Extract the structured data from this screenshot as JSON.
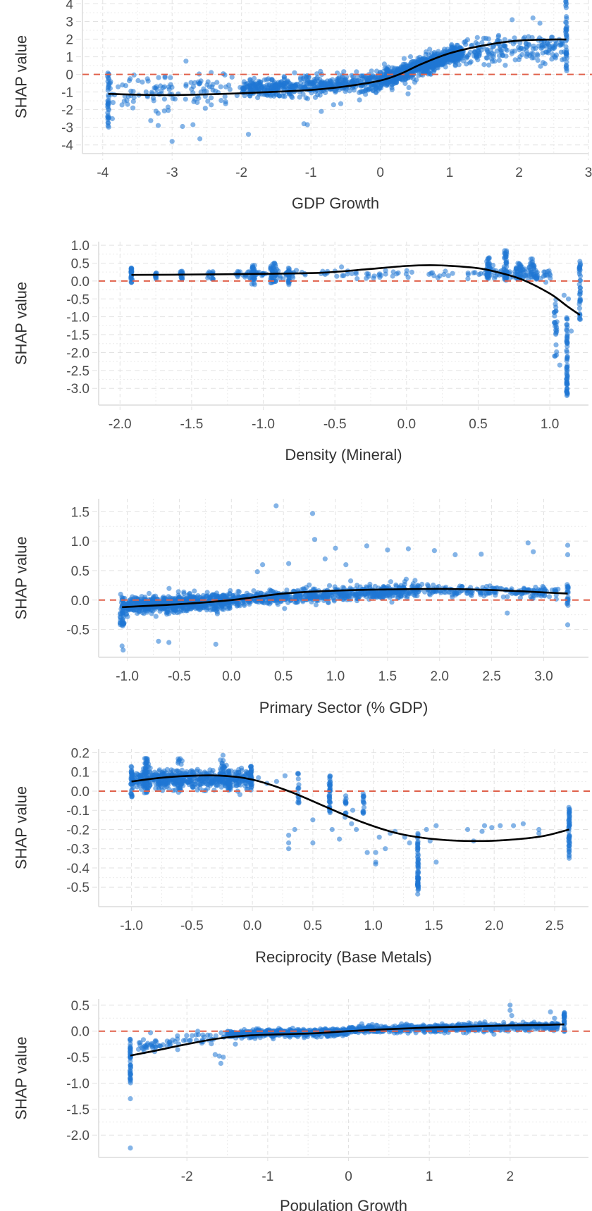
{
  "chart_data": [
    {
      "type": "scatter",
      "title": "",
      "xlabel": "GDP Growth",
      "ylabel": "SHAP value",
      "xlim": [
        -4.15,
        3.0
      ],
      "ylim": [
        -4.25,
        4.3
      ],
      "xticks": [
        -4,
        -3,
        -2,
        -1,
        0,
        1,
        2,
        3
      ],
      "xtick_labels": [
        "-4",
        "-3",
        "-2",
        "-1",
        "0",
        "1",
        "2",
        "3"
      ],
      "yticks": [
        4,
        3,
        2,
        1,
        0,
        -1,
        -2,
        -3,
        -4
      ],
      "ytick_labels": [
        "4",
        "3",
        "2",
        "1",
        "0",
        "-1",
        "-2",
        "-3",
        "-4"
      ],
      "grid": true,
      "reference_line": {
        "y": 0,
        "style": "dashed",
        "color": "#e0604a"
      },
      "point_color": "#1f77d4",
      "smooth_color": "#000000",
      "smooth": {
        "x": [
          -3.92,
          -3.5,
          -3.0,
          -2.5,
          -2.0,
          -1.5,
          -1.0,
          -0.5,
          0.0,
          0.3,
          0.6,
          1.0,
          1.5,
          2.0,
          2.5,
          2.68
        ],
        "y": [
          -1.1,
          -1.15,
          -1.17,
          -1.13,
          -1.07,
          -0.98,
          -0.88,
          -0.68,
          -0.35,
          0.05,
          0.6,
          1.2,
          1.65,
          1.92,
          1.98,
          1.98
        ]
      },
      "clusters": [
        {
          "x": -3.92,
          "y_min": -3.3,
          "y_max": 0.1,
          "n": 35,
          "jitter_x": 0.01
        },
        {
          "x": 2.68,
          "y_min": 0.0,
          "y_max": 4.3,
          "n": 40,
          "jitter_x": 0.01
        }
      ],
      "bands": [
        {
          "x_from": -3.9,
          "x_to": -2.0,
          "center_from": -1.0,
          "center_to": -0.8,
          "spread": 1.1,
          "n": 120
        },
        {
          "x_from": -2.0,
          "x_to": 0.0,
          "center_from": -0.8,
          "center_to": -0.45,
          "spread": 0.55,
          "n": 500
        },
        {
          "x_from": 0.0,
          "x_to": 1.2,
          "center_from": -0.35,
          "center_to": 1.3,
          "spread": 0.5,
          "n": 700
        },
        {
          "x_from": 1.2,
          "x_to": 2.65,
          "center_from": 1.3,
          "center_to": 1.6,
          "spread": 0.8,
          "n": 180
        }
      ],
      "outliers": [
        [
          -3.0,
          -3.8
        ],
        [
          -2.6,
          -3.65
        ],
        [
          -1.9,
          -3.4
        ],
        [
          -3.2,
          -2.9
        ],
        [
          -2.85,
          -2.95
        ],
        [
          -2.7,
          -2.85
        ],
        [
          -1.1,
          -2.8
        ],
        [
          -1.05,
          -2.85
        ],
        [
          -0.85,
          -2.1
        ],
        [
          2.2,
          3.2
        ],
        [
          2.3,
          2.9
        ],
        [
          1.9,
          3.1
        ],
        [
          -0.3,
          -1.45
        ],
        [
          0.4,
          -1.1
        ]
      ]
    },
    {
      "type": "scatter",
      "title": "",
      "xlabel": "Density (Mineral)",
      "ylabel": "SHAP value",
      "xlim": [
        -2.08,
        1.27
      ],
      "ylim": [
        -3.35,
        1.1
      ],
      "xticks": [
        -2.0,
        -1.5,
        -1.0,
        -0.5,
        0.0,
        0.5,
        1.0
      ],
      "xtick_labels": [
        "-2.0",
        "-1.5",
        "-1.0",
        "-0.5",
        "0.0",
        "0.5",
        "1.0"
      ],
      "yticks": [
        1.0,
        0.5,
        0.0,
        -0.5,
        -1.0,
        -1.5,
        -2.0,
        -2.5,
        -3.0
      ],
      "ytick_labels": [
        "1.0",
        "0.5",
        "0.0",
        "-0.5",
        "-1.0",
        "-1.5",
        "-2.0",
        "-2.5",
        "-3.0"
      ],
      "grid": true,
      "reference_line": {
        "y": 0,
        "style": "dashed",
        "color": "#e0604a"
      },
      "point_color": "#1f77d4",
      "smooth_color": "#000000",
      "smooth": {
        "x": [
          -1.92,
          -1.5,
          -1.0,
          -0.6,
          -0.3,
          0.0,
          0.2,
          0.45,
          0.6,
          0.8,
          1.0,
          1.12,
          1.21
        ],
        "y": [
          0.17,
          0.18,
          0.2,
          0.23,
          0.32,
          0.42,
          0.44,
          0.38,
          0.28,
          0.05,
          -0.35,
          -0.7,
          -0.95
        ]
      },
      "clusters": [
        {
          "x": -1.92,
          "y_min": -0.12,
          "y_max": 0.38,
          "n": 25,
          "jitter_x": 0.004
        },
        {
          "x": -1.75,
          "y_min": 0.05,
          "y_max": 0.25,
          "n": 10,
          "jitter_x": 0.004
        },
        {
          "x": -1.57,
          "y_min": 0.05,
          "y_max": 0.28,
          "n": 15,
          "jitter_x": 0.01
        },
        {
          "x": -1.37,
          "y_min": 0.05,
          "y_max": 0.28,
          "n": 15,
          "jitter_x": 0.02
        },
        {
          "x": -1.07,
          "y_min": -0.1,
          "y_max": 0.48,
          "n": 30,
          "jitter_x": 0.01
        },
        {
          "x": -0.93,
          "y_min": -0.08,
          "y_max": 0.52,
          "n": 40,
          "jitter_x": 0.02
        },
        {
          "x": -0.82,
          "y_min": -0.1,
          "y_max": 0.4,
          "n": 20,
          "jitter_x": 0.005
        },
        {
          "x": 0.57,
          "y_min": 0.05,
          "y_max": 0.7,
          "n": 30,
          "jitter_x": 0.01
        },
        {
          "x": 0.69,
          "y_min": 0.0,
          "y_max": 0.85,
          "n": 35,
          "jitter_x": 0.01
        },
        {
          "x": 0.78,
          "y_min": 0.05,
          "y_max": 0.5,
          "n": 25,
          "jitter_x": 0.02
        },
        {
          "x": 0.88,
          "y_min": 0.05,
          "y_max": 0.65,
          "n": 25,
          "jitter_x": 0.03
        },
        {
          "x": 1.04,
          "y_min": -2.3,
          "y_max": -0.5,
          "n": 25,
          "jitter_x": 0.01
        },
        {
          "x": 1.12,
          "y_min": -3.25,
          "y_max": -1.0,
          "n": 60,
          "jitter_x": 0.003
        },
        {
          "x": 1.21,
          "y_min": -1.1,
          "y_max": 0.65,
          "n": 35,
          "jitter_x": 0.004
        }
      ],
      "bands": [
        {
          "x_from": -1.2,
          "x_to": -0.7,
          "center_from": 0.2,
          "center_to": 0.2,
          "spread": 0.1,
          "n": 60
        },
        {
          "x_from": -0.7,
          "x_to": 0.55,
          "center_from": 0.2,
          "center_to": 0.2,
          "spread": 0.12,
          "n": 55
        },
        {
          "x_from": 0.55,
          "x_to": 1.03,
          "center_from": 0.25,
          "center_to": 0.2,
          "spread": 0.15,
          "n": 80
        }
      ],
      "outliers": [
        [
          1.07,
          -2.35
        ],
        [
          1.13,
          -0.5
        ],
        [
          1.15,
          -1.4
        ],
        [
          1.1,
          -0.4
        ]
      ]
    },
    {
      "type": "scatter",
      "title": "",
      "xlabel": "Primary Sector (% GDP)",
      "ylabel": "SHAP value",
      "xlim": [
        -1.18,
        3.43
      ],
      "ylim": [
        -0.9,
        1.72
      ],
      "xticks": [
        -1.0,
        -0.5,
        0.0,
        0.5,
        1.0,
        1.5,
        2.0,
        2.5,
        3.0
      ],
      "xtick_labels": [
        "-1.0",
        "-0.5",
        "0.0",
        "0.5",
        "1.0",
        "1.5",
        "2.0",
        "2.5",
        "3.0"
      ],
      "yticks": [
        1.5,
        1.0,
        0.5,
        0.0,
        -0.5
      ],
      "ytick_labels": [
        "1.5",
        "1.0",
        "0.5",
        "0.0",
        "-0.5"
      ],
      "grid": true,
      "reference_line": {
        "y": 0,
        "style": "dashed",
        "color": "#e0604a"
      },
      "point_color": "#1f77d4",
      "smooth_color": "#000000",
      "smooth": {
        "x": [
          -1.05,
          -0.5,
          0.0,
          0.5,
          1.0,
          1.5,
          2.0,
          2.5,
          3.0,
          3.23
        ],
        "y": [
          -0.12,
          -0.07,
          0.0,
          0.11,
          0.16,
          0.18,
          0.19,
          0.17,
          0.13,
          0.11
        ]
      },
      "clusters": [
        {
          "x": -1.05,
          "y_min": -0.45,
          "y_max": 0.1,
          "n": 40,
          "jitter_x": 0.02
        },
        {
          "x": 3.23,
          "y_min": -0.1,
          "y_max": 0.3,
          "n": 20,
          "jitter_x": 0.005
        }
      ],
      "bands": [
        {
          "x_from": -1.05,
          "x_to": 0.0,
          "center_from": -0.1,
          "center_to": -0.02,
          "spread": 0.14,
          "n": 700
        },
        {
          "x_from": 0.0,
          "x_to": 1.8,
          "center_from": 0.0,
          "center_to": 0.17,
          "spread": 0.12,
          "n": 600
        },
        {
          "x_from": 1.8,
          "x_to": 3.15,
          "center_from": 0.17,
          "center_to": 0.13,
          "spread": 0.09,
          "n": 180
        }
      ],
      "outliers": [
        [
          0.43,
          1.6
        ],
        [
          0.78,
          1.47
        ],
        [
          0.8,
          1.03
        ],
        [
          1.3,
          0.92
        ],
        [
          1.0,
          0.88
        ],
        [
          1.5,
          0.85
        ],
        [
          1.7,
          0.87
        ],
        [
          1.95,
          0.84
        ],
        [
          2.15,
          0.77
        ],
        [
          2.4,
          0.78
        ],
        [
          2.85,
          0.97
        ],
        [
          2.9,
          0.82
        ],
        [
          3.23,
          0.93
        ],
        [
          3.23,
          0.77
        ],
        [
          -0.15,
          -0.75
        ],
        [
          -0.6,
          -0.72
        ],
        [
          -0.7,
          -0.7
        ],
        [
          -1.04,
          -0.85
        ],
        [
          -1.05,
          -0.78
        ],
        [
          0.3,
          0.6
        ],
        [
          0.25,
          0.48
        ],
        [
          0.55,
          0.62
        ],
        [
          0.9,
          0.7
        ],
        [
          1.1,
          0.6
        ],
        [
          3.23,
          -0.42
        ],
        [
          2.65,
          -0.22
        ]
      ]
    },
    {
      "type": "scatter",
      "title": "",
      "xlabel": "Reciprocity (Base Metals)",
      "ylabel": "SHAP value",
      "xlim": [
        -1.19,
        2.78
      ],
      "ylim": [
        -0.58,
        0.22
      ],
      "xticks": [
        -1.0,
        -0.5,
        0.0,
        0.5,
        1.0,
        1.5,
        2.0,
        2.5
      ],
      "xtick_labels": [
        "-1.0",
        "-0.5",
        "0.0",
        "0.5",
        "1.0",
        "1.5",
        "2.0",
        "2.5"
      ],
      "yticks": [
        0.2,
        0.1,
        0.0,
        -0.1,
        -0.2,
        -0.3,
        -0.4,
        -0.5
      ],
      "ytick_labels": [
        "0.2",
        "0.1",
        "0.0",
        "-0.1",
        "-0.2",
        "-0.3",
        "-0.4",
        "-0.5"
      ],
      "grid": true,
      "reference_line": {
        "y": 0,
        "style": "dashed",
        "color": "#e0604a"
      },
      "point_color": "#1f77d4",
      "smooth_color": "#000000",
      "smooth": {
        "x": [
          -1.0,
          -0.75,
          -0.5,
          -0.25,
          0.0,
          0.3,
          0.6,
          0.9,
          1.2,
          1.5,
          1.8,
          2.1,
          2.4,
          2.62
        ],
        "y": [
          0.05,
          0.07,
          0.08,
          0.08,
          0.06,
          0.0,
          -0.08,
          -0.16,
          -0.22,
          -0.25,
          -0.26,
          -0.255,
          -0.235,
          -0.2
        ]
      },
      "clusters": [
        {
          "x": -1.0,
          "y_min": -0.04,
          "y_max": 0.13,
          "n": 30,
          "jitter_x": 0.005
        },
        {
          "x": -0.88,
          "y_min": -0.02,
          "y_max": 0.17,
          "n": 40,
          "jitter_x": 0.02
        },
        {
          "x": -0.6,
          "y_min": 0.0,
          "y_max": 0.18,
          "n": 25,
          "jitter_x": 0.02
        },
        {
          "x": -0.25,
          "y_min": 0.02,
          "y_max": 0.19,
          "n": 25,
          "jitter_x": 0.02
        },
        {
          "x": -0.19,
          "y_min": 0.0,
          "y_max": 0.15,
          "n": 20,
          "jitter_x": 0.01
        },
        {
          "x": -0.01,
          "y_min": 0.0,
          "y_max": 0.14,
          "n": 25,
          "jitter_x": 0.005
        },
        {
          "x": 0.38,
          "y_min": -0.07,
          "y_max": 0.1,
          "n": 15,
          "jitter_x": 0.005
        },
        {
          "x": 0.64,
          "y_min": -0.12,
          "y_max": 0.08,
          "n": 35,
          "jitter_x": 0.005
        },
        {
          "x": 0.77,
          "y_min": -0.14,
          "y_max": -0.02,
          "n": 12,
          "jitter_x": 0.005
        },
        {
          "x": 0.92,
          "y_min": -0.12,
          "y_max": -0.01,
          "n": 15,
          "jitter_x": 0.005
        },
        {
          "x": 1.37,
          "y_min": -0.55,
          "y_max": -0.21,
          "n": 60,
          "jitter_x": 0.004
        },
        {
          "x": 2.62,
          "y_min": -0.34,
          "y_max": -0.08,
          "n": 45,
          "jitter_x": 0.004
        }
      ],
      "bands": [
        {
          "x_from": -1.0,
          "x_to": 0.0,
          "center_from": 0.06,
          "center_to": 0.06,
          "spread": 0.05,
          "n": 500
        }
      ],
      "outliers": [
        [
          0.3,
          -0.27
        ],
        [
          0.3,
          -0.3
        ],
        [
          0.3,
          -0.23
        ],
        [
          0.35,
          -0.2
        ],
        [
          0.2,
          0.05
        ],
        [
          0.05,
          0.07
        ],
        [
          0.12,
          0.04
        ],
        [
          0.27,
          0.08
        ],
        [
          0.5,
          -0.15
        ],
        [
          0.5,
          -0.27
        ],
        [
          0.72,
          -0.25
        ],
        [
          0.66,
          -0.2
        ],
        [
          0.82,
          -0.17
        ],
        [
          0.86,
          -0.2
        ],
        [
          0.95,
          -0.32
        ],
        [
          1.02,
          -0.38
        ],
        [
          1.02,
          -0.37
        ],
        [
          1.02,
          -0.32
        ],
        [
          1.1,
          -0.3
        ],
        [
          1.05,
          -0.24
        ],
        [
          1.14,
          -0.22
        ],
        [
          1.18,
          -0.21
        ],
        [
          1.26,
          -0.24
        ],
        [
          1.3,
          -0.27
        ],
        [
          1.44,
          -0.2
        ],
        [
          1.47,
          -0.26
        ],
        [
          1.52,
          -0.37
        ],
        [
          1.52,
          -0.18
        ],
        [
          1.78,
          -0.2
        ],
        [
          1.83,
          -0.26
        ],
        [
          1.9,
          -0.21
        ],
        [
          1.92,
          -0.18
        ],
        [
          1.98,
          -0.19
        ],
        [
          2.05,
          -0.18
        ],
        [
          2.16,
          -0.18
        ],
        [
          2.24,
          -0.17
        ],
        [
          2.37,
          -0.2
        ],
        [
          2.37,
          -0.22
        ],
        [
          2.62,
          -0.35
        ],
        [
          0.77,
          -0.06
        ],
        [
          0.83,
          -0.1
        ]
      ]
    },
    {
      "type": "scatter",
      "title": "",
      "xlabel": "Population Growth",
      "ylabel": "SHAP value",
      "xlim": [
        -2.97,
        2.97
      ],
      "ylim": [
        -2.35,
        0.62
      ],
      "xticks": [
        -2,
        -1,
        0,
        1,
        2
      ],
      "xtick_labels": [
        "-2",
        "-1",
        "0",
        "1",
        "2"
      ],
      "yticks": [
        0.5,
        0.0,
        -0.5,
        -1.0,
        -1.5,
        -2.0
      ],
      "ytick_labels": [
        "0.5",
        "0.0",
        "-0.5",
        "-1.0",
        "-1.5",
        "-2.0"
      ],
      "grid": true,
      "reference_line": {
        "y": 0,
        "style": "dashed",
        "color": "#e0604a"
      },
      "point_color": "#1f77d4",
      "smooth_color": "#000000",
      "smooth": {
        "x": [
          -2.7,
          -2.4,
          -2.0,
          -1.6,
          -1.2,
          -0.8,
          -0.4,
          0.0,
          0.5,
          1.0,
          1.5,
          2.0,
          2.4,
          2.67
        ],
        "y": [
          -0.47,
          -0.38,
          -0.25,
          -0.14,
          -0.08,
          -0.06,
          -0.04,
          0.0,
          0.04,
          0.07,
          0.09,
          0.11,
          0.12,
          0.13
        ]
      },
      "clusters": [
        {
          "x": -2.7,
          "y_min": -1.02,
          "y_max": -0.12,
          "n": 40,
          "jitter_x": 0.004
        },
        {
          "x": 2.67,
          "y_min": -0.02,
          "y_max": 0.38,
          "n": 25,
          "jitter_x": 0.004
        }
      ],
      "bands": [
        {
          "x_from": -2.6,
          "x_to": -1.5,
          "center_from": -0.3,
          "center_to": -0.08,
          "spread": 0.1,
          "n": 70
        },
        {
          "x_from": -1.5,
          "x_to": 0.0,
          "center_from": -0.05,
          "center_to": -0.02,
          "spread": 0.07,
          "n": 500
        },
        {
          "x_from": 0.0,
          "x_to": 2.6,
          "center_from": 0.03,
          "center_to": 0.1,
          "spread": 0.07,
          "n": 650
        }
      ],
      "outliers": [
        [
          -2.7,
          -1.3
        ],
        [
          -2.7,
          -2.25
        ],
        [
          -1.65,
          -0.45
        ],
        [
          -1.6,
          -0.48
        ],
        [
          -1.58,
          -0.62
        ],
        [
          -1.55,
          -0.5
        ],
        [
          -1.4,
          -0.25
        ],
        [
          2.0,
          0.5
        ],
        [
          2.0,
          0.4
        ],
        [
          2.02,
          0.3
        ],
        [
          2.5,
          0.37
        ],
        [
          2.55,
          0.25
        ],
        [
          -2.45,
          -0.03
        ],
        [
          1.8,
          -0.06
        ]
      ]
    }
  ]
}
